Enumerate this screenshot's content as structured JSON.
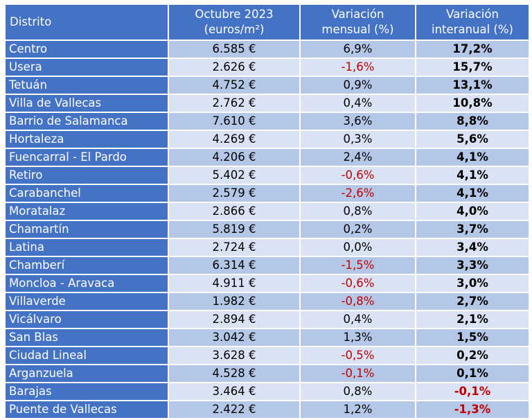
{
  "header": {
    "distrito": "Distrito",
    "precio_l1": "Octubre 2023",
    "precio_l2": "(euros/m²)",
    "mensual_l1": "Variación",
    "mensual_l2": "mensual (%)",
    "interanual_l1": "Variación",
    "interanual_l2": "interanual (%)"
  },
  "rows": [
    {
      "distrito": "Centro",
      "precio": "6.585 €",
      "mensual": "6,9%",
      "interanual": "17,2%"
    },
    {
      "distrito": "Usera",
      "precio": "2.626 €",
      "mensual": "-1,6%",
      "interanual": "15,7%"
    },
    {
      "distrito": "Tetuán",
      "precio": "4.752 €",
      "mensual": "0,9%",
      "interanual": "13,1%"
    },
    {
      "distrito": "Villa de Vallecas",
      "precio": "2.762 €",
      "mensual": "0,4%",
      "interanual": "10,8%"
    },
    {
      "distrito": "Barrio de Salamanca",
      "precio": "7.610 €",
      "mensual": "3,6%",
      "interanual": "8,8%"
    },
    {
      "distrito": "Hortaleza",
      "precio": "4.269 €",
      "mensual": "0,3%",
      "interanual": "5,6%"
    },
    {
      "distrito": "Fuencarral - El Pardo",
      "precio": "4.206 €",
      "mensual": "2,4%",
      "interanual": "4,1%"
    },
    {
      "distrito": "Retiro",
      "precio": "5.402 €",
      "mensual": "-0,6%",
      "interanual": "4,1%"
    },
    {
      "distrito": "Carabanchel",
      "precio": "2.579 €",
      "mensual": "-2,6%",
      "interanual": "4,1%"
    },
    {
      "distrito": "Moratalaz",
      "precio": "2.866 €",
      "mensual": "0,8%",
      "interanual": "4,0%"
    },
    {
      "distrito": "Chamartín",
      "precio": "5.819 €",
      "mensual": "0,2%",
      "interanual": "3,7%"
    },
    {
      "distrito": "Latina",
      "precio": "2.724 €",
      "mensual": "0,0%",
      "interanual": "3,4%"
    },
    {
      "distrito": "Chamberí",
      "precio": "6.314 €",
      "mensual": "-1,5%",
      "interanual": "3,3%"
    },
    {
      "distrito": "Moncloa - Aravaca",
      "precio": "4.911 €",
      "mensual": "-0,6%",
      "interanual": "3,0%"
    },
    {
      "distrito": "Villaverde",
      "precio": "1.982 €",
      "mensual": "-0,8%",
      "interanual": "2,7%"
    },
    {
      "distrito": "Vicálvaro",
      "precio": "2.894 €",
      "mensual": "0,4%",
      "interanual": "2,1%"
    },
    {
      "distrito": "San Blas",
      "precio": "3.042 €",
      "mensual": "1,3%",
      "interanual": "1,5%"
    },
    {
      "distrito": "Ciudad Lineal",
      "precio": "3.628 €",
      "mensual": "-0,5%",
      "interanual": "0,2%"
    },
    {
      "distrito": "Arganzuela",
      "precio": "4.528 €",
      "mensual": "-0,1%",
      "interanual": "0,1%"
    },
    {
      "distrito": "Barajas",
      "precio": "3.464 €",
      "mensual": "0,8%",
      "interanual": "-0,1%"
    },
    {
      "distrito": "Puente de Vallecas",
      "precio": "2.422 €",
      "mensual": "1,2%",
      "interanual": "-1,3%"
    }
  ],
  "colors": {
    "header_bg": "#4472c4",
    "row_odd": "#b4c7e7",
    "row_even": "#dae3f3",
    "negative_mensual": "#c00000",
    "negative_interanual": "#c00000"
  }
}
